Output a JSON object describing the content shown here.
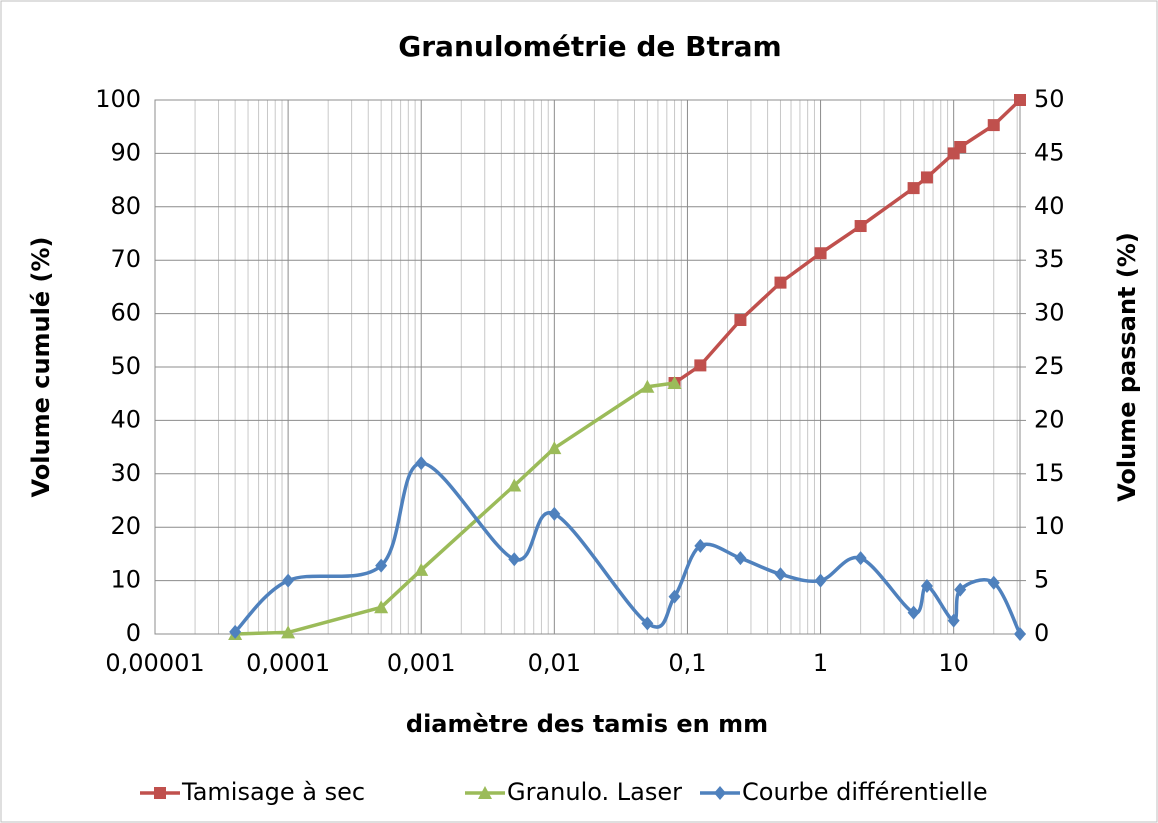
{
  "chart_data": {
    "type": "line",
    "title": "Granulométrie de Btram",
    "xlabel": "diamètre des tamis en mm",
    "ylabel": "Volume cumulé (%)",
    "y2label": "Volume passant (%)",
    "xscale": "log",
    "xlim": [
      1e-05,
      31.5
    ],
    "xticks": [
      {
        "value": 1e-05,
        "label": "0,00001"
      },
      {
        "value": 0.0001,
        "label": "0,0001"
      },
      {
        "value": 0.001,
        "label": "0,001"
      },
      {
        "value": 0.01,
        "label": "0,01"
      },
      {
        "value": 0.1,
        "label": "0,1"
      },
      1,
      10
    ],
    "ylim": [
      0,
      100
    ],
    "yticks": [
      0,
      10,
      20,
      30,
      40,
      50,
      60,
      70,
      80,
      90,
      100
    ],
    "y2lim": [
      0,
      50
    ],
    "y2ticks": [
      0,
      5,
      10,
      15,
      20,
      25,
      30,
      35,
      40,
      45,
      50
    ],
    "grid": true,
    "legend": "bottom",
    "series": [
      {
        "name": "Tamisage à sec",
        "color": "#c0504d",
        "marker": "square",
        "x": [
          0.08,
          0.125,
          0.25,
          0.5,
          1,
          2,
          5,
          6.3,
          10,
          11.2,
          20,
          31.5
        ],
        "values": [
          47,
          50.3,
          58.8,
          65.8,
          71.3,
          76.4,
          83.5,
          85.5,
          90,
          91.2,
          95.3,
          100
        ]
      },
      {
        "name": "Granulo. Laser",
        "color": "#9bbb59",
        "marker": "triangle",
        "x": [
          4e-05,
          0.0001,
          0.0005,
          0.001,
          0.005,
          0.01,
          0.05,
          0.08
        ],
        "values": [
          0,
          0.3,
          5,
          12,
          27.8,
          34.8,
          46.3,
          47
        ]
      },
      {
        "name": "Courbe différentielle",
        "color": "#4f81bd",
        "marker": "diamond",
        "axis": "y2",
        "smooth": true,
        "x": [
          4e-05,
          0.0001,
          0.0005,
          0.001,
          0.005,
          0.01,
          0.05,
          0.08,
          0.125,
          0.25,
          0.5,
          1,
          2,
          5,
          6.3,
          10,
          11.2,
          20,
          31.5
        ],
        "values": [
          0.2,
          5,
          6.4,
          16,
          7,
          11.25,
          1,
          3.5,
          8.25,
          7.1,
          5.6,
          5,
          7.1,
          2,
          4.5,
          1.25,
          4.15,
          4.8,
          0
        ]
      }
    ]
  }
}
